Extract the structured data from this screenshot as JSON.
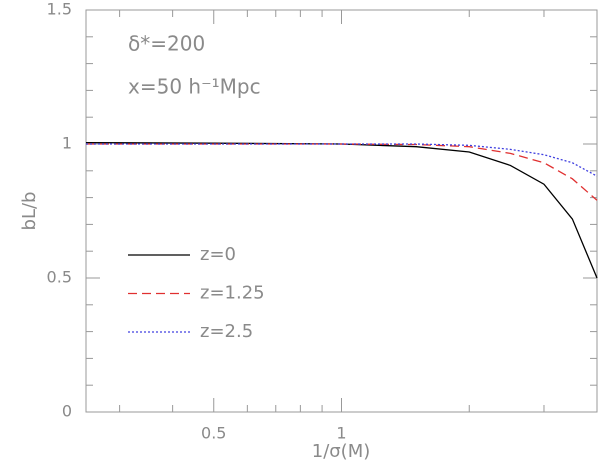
{
  "chart_data": {
    "type": "line",
    "xlabel": "1/σ(M)",
    "ylabel": "bL/b",
    "annotations": [
      "δ*=200",
      "x=50 h⁻¹Mpc"
    ],
    "x": [
      0.25,
      0.5,
      1,
      1.5,
      2,
      2.5,
      3,
      3.5,
      4
    ],
    "series": [
      {
        "name": "z=0",
        "color": "#000000",
        "dash": "solid",
        "values": [
          1.005,
          1.003,
          1.0,
          0.99,
          0.97,
          0.92,
          0.85,
          0.72,
          0.5
        ]
      },
      {
        "name": "z=1.25",
        "color": "#e03030",
        "dash": "dashed",
        "values": [
          1.0,
          1.0,
          1.0,
          0.998,
          0.99,
          0.965,
          0.93,
          0.87,
          0.79
        ]
      },
      {
        "name": "z=2.5",
        "color": "#4040e0",
        "dash": "dotted",
        "values": [
          1.0,
          1.0,
          1.0,
          1.0,
          0.995,
          0.98,
          0.96,
          0.93,
          0.88
        ]
      }
    ],
    "xscale": "log",
    "xlim": [
      0.25,
      4
    ],
    "xticks": [
      0.5,
      1
    ],
    "xminorticks": [
      0.3,
      0.4,
      0.6,
      0.7,
      0.8,
      0.9,
      2,
      3
    ],
    "ylim": [
      0,
      1.5
    ],
    "yticks": [
      0,
      0.5,
      1,
      1.5
    ],
    "yminorticks": [
      0.1,
      0.2,
      0.3,
      0.4,
      0.6,
      0.7,
      0.8,
      0.9,
      1.1,
      1.2,
      1.3,
      1.4
    ]
  }
}
